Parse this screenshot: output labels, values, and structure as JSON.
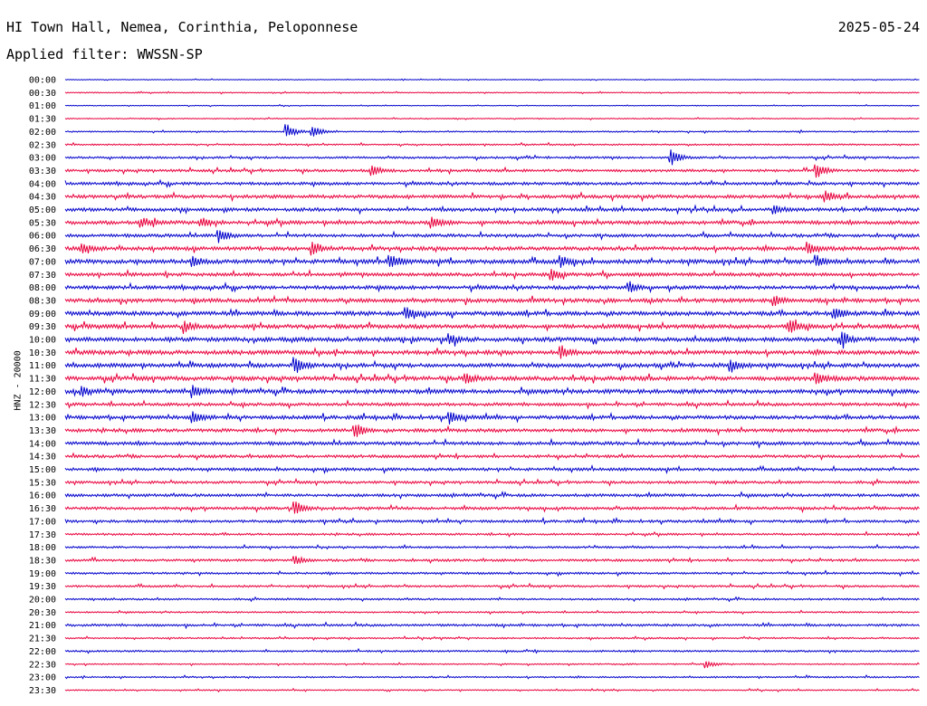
{
  "header": {
    "station": "HI Town Hall, Nemea, Corinthia, Peloponnese",
    "date": "2025-05-24",
    "filter": "Applied filter: WWSSN-SP"
  },
  "colors": {
    "trace_a": "#0000cc",
    "trace_b": "#e8003c",
    "text": "#000000"
  },
  "chart_data": {
    "type": "line",
    "title": "HI Town Hall, Nemea, Corinthia, Peloponnese",
    "ylabel": "HNZ - 20000",
    "grid": false,
    "row_labels": [
      "00:00",
      "00:30",
      "01:00",
      "01:30",
      "02:00",
      "02:30",
      "03:00",
      "03:30",
      "04:00",
      "04:30",
      "05:00",
      "05:30",
      "06:00",
      "06:30",
      "07:00",
      "07:30",
      "08:00",
      "08:30",
      "09:00",
      "09:30",
      "10:00",
      "10:30",
      "11:00",
      "11:30",
      "12:00",
      "12:30",
      "13:00",
      "13:30",
      "14:00",
      "14:30",
      "15:00",
      "15:30",
      "16:00",
      "16:30",
      "17:00",
      "17:30",
      "18:00",
      "18:30",
      "19:00",
      "19:30",
      "20:00",
      "20:30",
      "21:00",
      "21:30",
      "22:00",
      "22:30",
      "23:00",
      "23:30"
    ],
    "noise_level": [
      0.3,
      0.4,
      0.3,
      0.4,
      0.5,
      0.6,
      0.8,
      1.0,
      1.1,
      1.3,
      1.3,
      1.4,
      1.2,
      1.5,
      1.6,
      1.3,
      1.4,
      1.5,
      1.6,
      1.6,
      1.6,
      1.6,
      1.5,
      1.6,
      1.6,
      1.2,
      1.4,
      1.3,
      1.3,
      1.1,
      1.1,
      1.0,
      1.1,
      1.1,
      1.0,
      0.8,
      0.8,
      0.9,
      0.8,
      0.8,
      0.7,
      0.6,
      0.9,
      0.6,
      0.7,
      0.5,
      0.6,
      0.5
    ],
    "events": [
      {
        "row": 4,
        "x": 0.26,
        "amp": 8
      },
      {
        "row": 4,
        "x": 0.29,
        "amp": 7
      },
      {
        "row": 6,
        "x": 0.71,
        "amp": 9
      },
      {
        "row": 7,
        "x": 0.36,
        "amp": 5
      },
      {
        "row": 7,
        "x": 0.88,
        "amp": 8
      },
      {
        "row": 9,
        "x": 0.89,
        "amp": 6
      },
      {
        "row": 10,
        "x": 0.83,
        "amp": 5
      },
      {
        "row": 11,
        "x": 0.09,
        "amp": 6
      },
      {
        "row": 11,
        "x": 0.16,
        "amp": 5
      },
      {
        "row": 11,
        "x": 0.43,
        "amp": 6
      },
      {
        "row": 12,
        "x": 0.18,
        "amp": 8
      },
      {
        "row": 13,
        "x": 0.02,
        "amp": 5
      },
      {
        "row": 13,
        "x": 0.29,
        "amp": 9
      },
      {
        "row": 13,
        "x": 0.87,
        "amp": 6
      },
      {
        "row": 14,
        "x": 0.15,
        "amp": 5
      },
      {
        "row": 14,
        "x": 0.38,
        "amp": 8
      },
      {
        "row": 14,
        "x": 0.58,
        "amp": 6
      },
      {
        "row": 14,
        "x": 0.88,
        "amp": 6
      },
      {
        "row": 15,
        "x": 0.57,
        "amp": 6
      },
      {
        "row": 16,
        "x": 0.66,
        "amp": 6
      },
      {
        "row": 17,
        "x": 0.83,
        "amp": 5
      },
      {
        "row": 18,
        "x": 0.4,
        "amp": 6
      },
      {
        "row": 18,
        "x": 0.9,
        "amp": 7
      },
      {
        "row": 19,
        "x": 0.14,
        "amp": 6
      },
      {
        "row": 19,
        "x": 0.85,
        "amp": 6
      },
      {
        "row": 20,
        "x": 0.45,
        "amp": 6
      },
      {
        "row": 20,
        "x": 0.91,
        "amp": 7
      },
      {
        "row": 21,
        "x": 0.58,
        "amp": 8
      },
      {
        "row": 22,
        "x": 0.27,
        "amp": 8
      },
      {
        "row": 22,
        "x": 0.78,
        "amp": 6
      },
      {
        "row": 23,
        "x": 0.47,
        "amp": 5
      },
      {
        "row": 23,
        "x": 0.88,
        "amp": 6
      },
      {
        "row": 24,
        "x": 0.02,
        "amp": 6
      },
      {
        "row": 24,
        "x": 0.15,
        "amp": 7
      },
      {
        "row": 26,
        "x": 0.15,
        "amp": 6
      },
      {
        "row": 26,
        "x": 0.45,
        "amp": 7
      },
      {
        "row": 27,
        "x": 0.34,
        "amp": 8
      },
      {
        "row": 33,
        "x": 0.27,
        "amp": 7
      },
      {
        "row": 37,
        "x": 0.27,
        "amp": 5
      },
      {
        "row": 45,
        "x": 0.75,
        "amp": 4
      }
    ]
  }
}
